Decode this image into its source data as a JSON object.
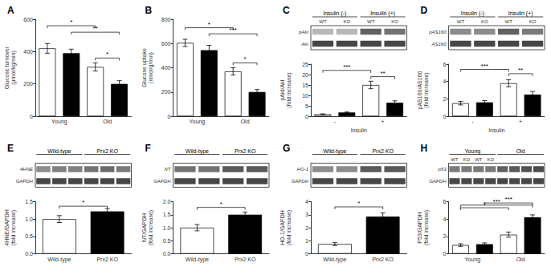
{
  "chart_data": [
    {
      "type": "bar",
      "title": "A",
      "ylabel": "Glucose turnover\n(μmol/kg/min)",
      "categories": [
        "Young",
        "Old"
      ],
      "series": [
        {
          "color": "white",
          "values": [
            420,
            305
          ],
          "errors": [
            30,
            25
          ]
        },
        {
          "color": "black",
          "values": [
            390,
            200
          ],
          "errors": [
            25,
            20
          ]
        }
      ],
      "ylim": [
        0,
        600
      ],
      "yticks": [
        0,
        200,
        400,
        600
      ],
      "grid": false,
      "brackets": [
        {
          "x1": 0,
          "x2": 2,
          "y": 560,
          "label": "*"
        },
        {
          "x1": 1,
          "x2": 3,
          "y": 520,
          "label": "**"
        },
        {
          "x1": 2,
          "x2": 3,
          "y": 360,
          "label": "*"
        }
      ]
    },
    {
      "type": "bar",
      "title": "B",
      "ylabel": "Glucose uptake\n(nmol/g/min)",
      "categories": [
        "Young",
        "Old"
      ],
      "series": [
        {
          "color": "white",
          "values": [
            605,
            370
          ],
          "errors": [
            30,
            30
          ]
        },
        {
          "color": "black",
          "values": [
            545,
            200
          ],
          "errors": [
            40,
            20
          ]
        }
      ],
      "ylim": [
        0,
        800
      ],
      "yticks": [
        0,
        200,
        400,
        600,
        800
      ],
      "grid": false,
      "brackets": [
        {
          "x1": 0,
          "x2": 2,
          "y": 730,
          "label": "*"
        },
        {
          "x1": 1,
          "x2": 3,
          "y": 680,
          "label": "***"
        },
        {
          "x1": 2,
          "x2": 3,
          "y": 440,
          "label": "*"
        }
      ]
    },
    {
      "type": "blot",
      "title": "C",
      "bands": [
        "pAkt",
        "Akt"
      ],
      "groups": [
        "Insulin (-)",
        "Insulin (+)"
      ],
      "categories": [
        "WT",
        "KO",
        "WT",
        "KO"
      ],
      "values": [
        [
          0.72,
          0.72,
          0.38,
          0.45
        ],
        [
          0.28,
          0.28,
          0.28,
          0.28
        ]
      ]
    },
    {
      "type": "bar",
      "ylabel": "pAkt/Akt\n(fold increase)",
      "xlabel": "Insulin",
      "categories": [
        "-",
        "+"
      ],
      "series": [
        {
          "color": "white",
          "values": [
            1.0,
            15.0
          ],
          "errors": [
            0.15,
            1.8
          ]
        },
        {
          "color": "black",
          "values": [
            1.8,
            6.5
          ],
          "errors": [
            0.25,
            0.9
          ]
        }
      ],
      "ylim": [
        0,
        25
      ],
      "yticks": [
        0,
        5,
        10,
        15,
        20,
        25
      ],
      "grid": false,
      "brackets": [
        {
          "x1": 0,
          "x2": 2,
          "y": 22,
          "label": "***"
        },
        {
          "x1": 2,
          "x2": 3,
          "y": 19,
          "label": "**"
        }
      ]
    },
    {
      "type": "blot",
      "title": "D",
      "bands": [
        "pAS160",
        "AS160"
      ],
      "groups": [
        "Insulin (-)",
        "Insulin (+)"
      ],
      "categories": [
        "WT",
        "KO",
        "WT",
        "KO"
      ],
      "values": [
        [
          0.55,
          0.55,
          0.38,
          0.48
        ],
        [
          0.28,
          0.28,
          0.28,
          0.28
        ]
      ]
    },
    {
      "type": "bar",
      "ylabel": "pAS160/AS160\n(fold increase)",
      "xlabel": "Insulin",
      "categories": [
        "-",
        "+"
      ],
      "series": [
        {
          "color": "white",
          "values": [
            1.5,
            3.8
          ],
          "errors": [
            0.2,
            0.4
          ]
        },
        {
          "color": "black",
          "values": [
            1.6,
            2.5
          ],
          "errors": [
            0.2,
            0.35
          ]
        }
      ],
      "ylim": [
        0,
        6
      ],
      "yticks": [
        0,
        2,
        4,
        6
      ],
      "grid": false,
      "brackets": [
        {
          "x1": 0,
          "x2": 2,
          "y": 5.4,
          "label": "***"
        },
        {
          "x1": 2,
          "x2": 3,
          "y": 4.9,
          "label": "**"
        }
      ]
    },
    {
      "type": "blot",
      "title": "E",
      "bands": [
        "4HNE",
        "GAPDH"
      ],
      "groups": [
        "Wild-type",
        "Prx2 KO"
      ],
      "categories": [
        null,
        null,
        null,
        null,
        null,
        null
      ],
      "values": [
        [
          0.55,
          0.5,
          0.5,
          0.45,
          0.42,
          0.48
        ],
        [
          0.28,
          0.28,
          0.28,
          0.28,
          0.28,
          0.28
        ]
      ]
    },
    {
      "type": "bar",
      "ylabel": "4HNE/GAPDH\n(fold increase)",
      "categories": [
        "Wild-type",
        "Prx2 KO"
      ],
      "values": [
        1.0,
        1.22
      ],
      "errors": [
        0.1,
        0.08
      ],
      "colors": [
        "white",
        "black"
      ],
      "ylim": [
        0,
        1.5
      ],
      "yticks": [
        {
          "value": 0,
          "label": "0.0"
        },
        0.5,
        {
          "value": 1,
          "label": "1.0"
        },
        1.5
      ],
      "grid": false,
      "brackets": [
        {
          "x1": 0,
          "x2": 1,
          "y": 1.37,
          "label": "*"
        }
      ]
    },
    {
      "type": "blot",
      "title": "F",
      "bands": [
        "NT",
        "GAPDH"
      ],
      "groups": [
        "Wild-type",
        "Prx2 KO"
      ],
      "categories": [
        null,
        null,
        null,
        null
      ],
      "values": [
        [
          0.45,
          0.45,
          0.35,
          0.35
        ],
        [
          0.28,
          0.28,
          0.28,
          0.28
        ]
      ]
    },
    {
      "type": "bar",
      "ylabel": "NT/GAPDH\n(fold increase)",
      "categories": [
        "Wild-type",
        "Prx2 KO"
      ],
      "values": [
        1.0,
        1.5
      ],
      "errors": [
        0.12,
        0.1
      ],
      "colors": [
        "white",
        "black"
      ],
      "ylim": [
        0,
        2.0
      ],
      "yticks": [
        {
          "value": 0,
          "label": "0.0"
        },
        0.5,
        {
          "value": 1,
          "label": "1.0"
        },
        1.5,
        {
          "value": 2,
          "label": "2.0"
        }
      ],
      "grid": false,
      "brackets": [
        {
          "x1": 0,
          "x2": 1,
          "y": 1.78,
          "label": "*"
        }
      ]
    },
    {
      "type": "blot",
      "title": "G",
      "bands": [
        "HO-1",
        "GAPDH"
      ],
      "groups": [
        "Wild-type",
        "Prx2 KO"
      ],
      "categories": [
        null,
        null,
        null,
        null
      ],
      "values": [
        [
          0.55,
          0.55,
          0.35,
          0.35
        ],
        [
          0.28,
          0.28,
          0.28,
          0.28
        ]
      ]
    },
    {
      "type": "bar",
      "ylabel": "HO-1/GAPDH\n(fold increase)",
      "categories": [
        "Wild-type",
        "Prx2 KO"
      ],
      "values": [
        0.75,
        2.85
      ],
      "errors": [
        0.12,
        0.28
      ],
      "colors": [
        "white",
        "black"
      ],
      "ylim": [
        0,
        4
      ],
      "yticks": [
        0,
        1,
        2,
        3,
        4
      ],
      "grid": false,
      "brackets": [
        {
          "x1": 0,
          "x2": 1,
          "y": 3.6,
          "label": "*"
        }
      ]
    },
    {
      "type": "blot",
      "title": "H",
      "bands": [
        "p53",
        "GAPDH"
      ],
      "groups": [
        "Young",
        "Old"
      ],
      "categories": [
        "WT",
        "KO",
        "WT",
        "KO",
        null,
        null,
        null,
        null
      ],
      "values": [
        [
          0.48,
          0.48,
          0.48,
          0.48,
          0.38,
          0.35,
          0.32,
          0.3
        ],
        [
          0.28,
          0.28,
          0.28,
          0.28,
          0.28,
          0.28,
          0.28,
          0.28
        ]
      ]
    },
    {
      "type": "bar",
      "ylabel": "P53/GAPDH\n(fold increase)",
      "categories": [
        "Young",
        "Old"
      ],
      "series": [
        {
          "color": "white",
          "values": [
            1.0,
            2.2
          ],
          "errors": [
            0.15,
            0.3
          ]
        },
        {
          "color": "black",
          "values": [
            1.1,
            4.2
          ],
          "errors": [
            0.15,
            0.28
          ]
        }
      ],
      "ylim": [
        0,
        6
      ],
      "yticks": [
        0,
        2,
        4,
        6
      ],
      "grid": false,
      "brackets": [
        {
          "x1": 0,
          "x2": 2,
          "y": 5.3,
          "label": "*"
        },
        {
          "x1": 0,
          "x2": 3,
          "y": 5.6,
          "label": "***"
        },
        {
          "x1": 1,
          "x2": 3,
          "y": 5.85,
          "label": "***"
        }
      ]
    }
  ]
}
